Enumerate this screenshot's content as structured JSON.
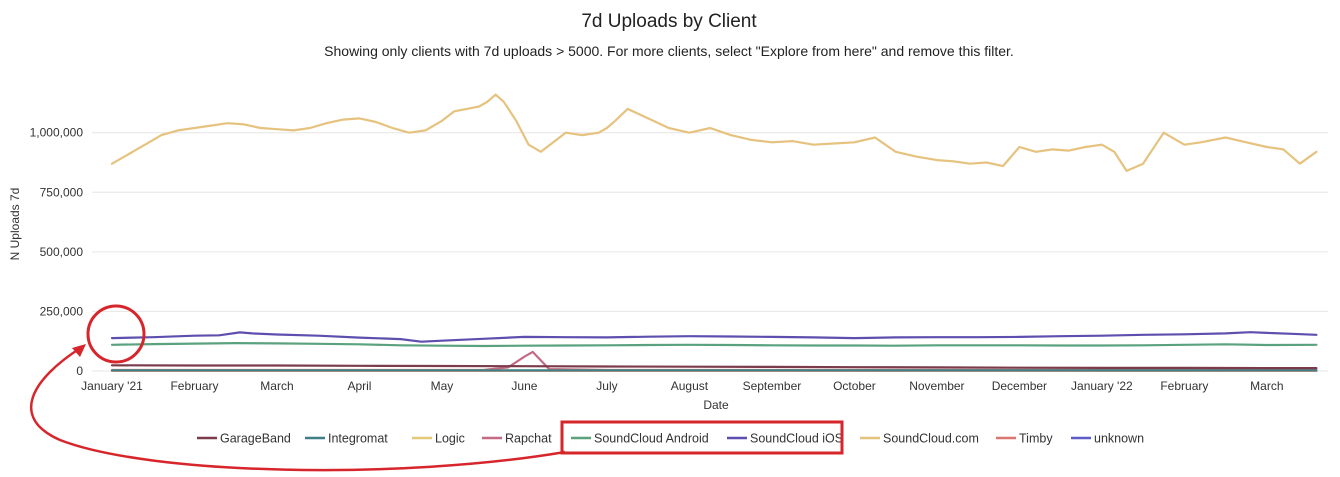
{
  "chart_data": {
    "type": "line",
    "title": "7d Uploads by Client",
    "subtitle": "Showing only clients with 7d uploads > 5000. For more clients, select \"Explore from here\" and remove this filter.",
    "xlabel": "Date",
    "ylabel": "N Uploads 7d",
    "x_ticks": [
      "January '21",
      "February",
      "March",
      "April",
      "May",
      "June",
      "July",
      "August",
      "September",
      "October",
      "November",
      "December",
      "January '22",
      "February",
      "March"
    ],
    "x_months": [
      0,
      1,
      2,
      3,
      4,
      5,
      6,
      7,
      8,
      9,
      10,
      11,
      12,
      13,
      14
    ],
    "y_ticks": [
      0,
      250000,
      500000,
      750000,
      1000000
    ],
    "y_tick_labels": [
      "0",
      "250,000",
      "500,000",
      "750,000",
      "1,000,000"
    ],
    "ylim": [
      0,
      1150000
    ],
    "xlim": [
      0,
      14.62
    ],
    "legend_position": "bottom",
    "grid": true,
    "series": [
      {
        "name": "GarageBand",
        "color": "#7b3b4a",
        "x": [
          0,
          1,
          2,
          3,
          4,
          5,
          6,
          7,
          8,
          9,
          10,
          11,
          12,
          13,
          14,
          14.6
        ],
        "y": [
          24000,
          23000,
          23000,
          22000,
          21000,
          20000,
          19000,
          18000,
          17000,
          16000,
          15000,
          14000,
          13000,
          13000,
          12000,
          12000
        ]
      },
      {
        "name": "Integromat",
        "color": "#3f7f86",
        "x": [
          0,
          14.6
        ],
        "y": [
          3000,
          3000
        ]
      },
      {
        "name": "Logic",
        "color": "#e3c978",
        "x": [
          0,
          14.6
        ],
        "y": [
          2000,
          2000
        ]
      },
      {
        "name": "Rapchat",
        "color": "#c46a85",
        "x": [
          0,
          4.5,
          4.8,
          5.0,
          5.1,
          5.3,
          6,
          14.6
        ],
        "y": [
          4000,
          4000,
          15000,
          60000,
          80000,
          8000,
          4000,
          4000
        ]
      },
      {
        "name": "SoundCloud Android",
        "color": "#5aa27e",
        "x": [
          0,
          0.5,
          1,
          1.5,
          2,
          2.5,
          3,
          3.5,
          4,
          4.5,
          5,
          5.5,
          6,
          6.5,
          7,
          7.5,
          8,
          8.5,
          9,
          9.5,
          10,
          10.5,
          11,
          11.5,
          12,
          12.5,
          13,
          13.5,
          14,
          14.6
        ],
        "y": [
          110000,
          113000,
          115000,
          117000,
          116000,
          114000,
          112000,
          108000,
          106000,
          105000,
          106000,
          107000,
          108000,
          109000,
          110000,
          109000,
          108000,
          107000,
          107000,
          106000,
          108000,
          108000,
          108000,
          107000,
          107000,
          108000,
          110000,
          112000,
          109000,
          110000
        ]
      },
      {
        "name": "SoundCloud iOS",
        "color": "#5c4fae",
        "x": [
          0,
          0.5,
          1,
          1.3,
          1.55,
          1.7,
          2,
          2.5,
          3,
          3.5,
          3.75,
          4,
          4.5,
          5,
          5.5,
          6,
          6.5,
          7,
          7.5,
          8,
          8.5,
          9,
          9.5,
          10,
          10.5,
          11,
          11.5,
          12,
          12.5,
          13,
          13.5,
          13.8,
          14,
          14.3,
          14.6
        ],
        "y": [
          138000,
          142000,
          148000,
          150000,
          162000,
          158000,
          153000,
          148000,
          140000,
          134000,
          123000,
          127000,
          135000,
          143000,
          142000,
          141000,
          144000,
          146000,
          145000,
          143000,
          141000,
          138000,
          141000,
          142000,
          142000,
          143000,
          146000,
          148000,
          152000,
          154000,
          158000,
          163000,
          160000,
          156000,
          152000
        ]
      },
      {
        "name": "SoundCloud.com",
        "color": "#e6c27f",
        "x": [
          0,
          0.15,
          0.3,
          0.45,
          0.6,
          0.8,
          1.0,
          1.2,
          1.4,
          1.6,
          1.8,
          2.0,
          2.2,
          2.4,
          2.6,
          2.8,
          3.0,
          3.2,
          3.4,
          3.6,
          3.8,
          4.0,
          4.15,
          4.3,
          4.45,
          4.55,
          4.65,
          4.75,
          4.9,
          5.05,
          5.2,
          5.35,
          5.5,
          5.7,
          5.9,
          6.0,
          6.1,
          6.25,
          6.5,
          6.75,
          7.0,
          7.25,
          7.5,
          7.75,
          8.0,
          8.25,
          8.5,
          8.75,
          9.0,
          9.25,
          9.5,
          9.75,
          10.0,
          10.2,
          10.4,
          10.6,
          10.8,
          11.0,
          11.2,
          11.4,
          11.6,
          11.8,
          12.0,
          12.15,
          12.3,
          12.5,
          12.75,
          13.0,
          13.2,
          13.5,
          13.75,
          14.0,
          14.2,
          14.4,
          14.6
        ],
        "y": [
          870000,
          900000,
          930000,
          960000,
          990000,
          1010000,
          1020000,
          1030000,
          1040000,
          1035000,
          1020000,
          1015000,
          1010000,
          1020000,
          1040000,
          1055000,
          1060000,
          1045000,
          1020000,
          1000000,
          1010000,
          1050000,
          1090000,
          1100000,
          1110000,
          1130000,
          1160000,
          1130000,
          1050000,
          950000,
          920000,
          960000,
          1000000,
          990000,
          1000000,
          1020000,
          1050000,
          1100000,
          1060000,
          1020000,
          1000000,
          1020000,
          990000,
          970000,
          960000,
          965000,
          950000,
          955000,
          960000,
          980000,
          920000,
          900000,
          885000,
          880000,
          870000,
          875000,
          860000,
          940000,
          920000,
          930000,
          925000,
          940000,
          950000,
          920000,
          840000,
          870000,
          1000000,
          950000,
          960000,
          980000,
          960000,
          940000,
          930000,
          870000,
          920000
        ]
      },
      {
        "name": "Timby",
        "color": "#d9776f",
        "x": [
          0,
          14.6
        ],
        "y": [
          1000,
          1000
        ]
      },
      {
        "name": "unknown",
        "color": "#5c5bc7",
        "x": [
          0,
          14.6
        ],
        "y": [
          500,
          500
        ]
      }
    ]
  }
}
